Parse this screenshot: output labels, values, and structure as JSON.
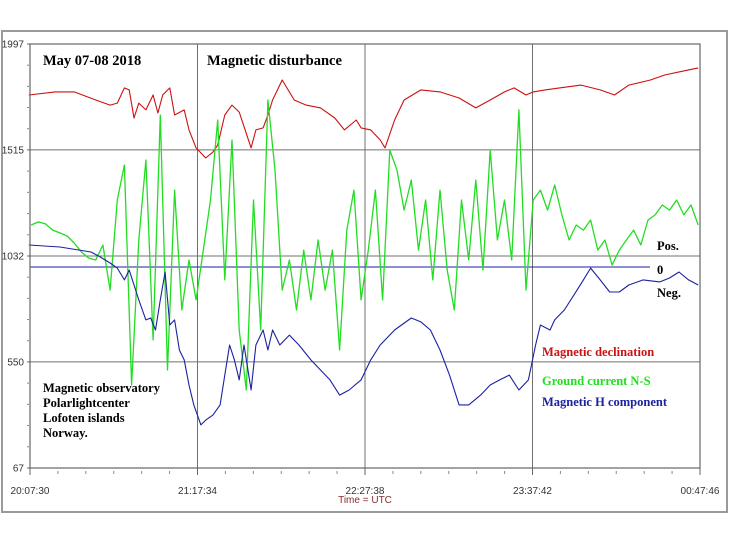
{
  "chart_data": {
    "type": "line",
    "title_left": "May 07-08 2018",
    "title_center": "Magnetic disturbance",
    "xlabel": "Time = UTC",
    "x_ticks": [
      "20:07:30",
      "21:17:34",
      "22:27:38",
      "23:37:42",
      "00:47:46"
    ],
    "y_ticks": [
      "1997",
      "1515",
      "1032",
      "550",
      "67"
    ],
    "ylim": [
      67,
      1997
    ],
    "xlim": [
      "20:07:30",
      "00:47:46"
    ],
    "grid": true,
    "zero_line": {
      "value": 982,
      "label": "0",
      "pos_label": "Pos.",
      "neg_label": "Neg."
    },
    "observatory_text": [
      "Magnetic observatory",
      "Polarlightcenter",
      "Lofoten islands",
      "Norway."
    ],
    "legend_position": "right",
    "series": [
      {
        "name": "Magnetic declination",
        "color": "#cc1111",
        "points": [
          [
            "20:07",
            1765
          ],
          [
            "20:18",
            1779
          ],
          [
            "20:26",
            1779
          ],
          [
            "20:35",
            1742
          ],
          [
            "20:41",
            1719
          ],
          [
            "20:44",
            1728
          ],
          [
            "20:47",
            1797
          ],
          [
            "20:49",
            1788
          ],
          [
            "20:51",
            1660
          ],
          [
            "20:53",
            1728
          ],
          [
            "20:56",
            1697
          ],
          [
            "20:59",
            1765
          ],
          [
            "21:01",
            1683
          ],
          [
            "21:03",
            1765
          ],
          [
            "21:06",
            1797
          ],
          [
            "21:08",
            1674
          ],
          [
            "21:12",
            1697
          ],
          [
            "21:14",
            1606
          ],
          [
            "21:17",
            1524
          ],
          [
            "21:21",
            1478
          ],
          [
            "21:24",
            1505
          ],
          [
            "21:26",
            1537
          ],
          [
            "21:29",
            1674
          ],
          [
            "21:32",
            1719
          ],
          [
            "21:35",
            1687
          ],
          [
            "21:40",
            1524
          ],
          [
            "21:42",
            1606
          ],
          [
            "21:45",
            1615
          ],
          [
            "21:47",
            1674
          ],
          [
            "21:49",
            1742
          ],
          [
            "21:53",
            1833
          ],
          [
            "21:58",
            1742
          ],
          [
            "22:03",
            1719
          ],
          [
            "22:09",
            1706
          ],
          [
            "22:15",
            1660
          ],
          [
            "22:19",
            1606
          ],
          [
            "22:24",
            1651
          ],
          [
            "22:26",
            1615
          ],
          [
            "22:30",
            1606
          ],
          [
            "22:34",
            1560
          ],
          [
            "22:36",
            1524
          ],
          [
            "22:40",
            1651
          ],
          [
            "22:44",
            1742
          ],
          [
            "22:51",
            1788
          ],
          [
            "22:59",
            1779
          ],
          [
            "23:07",
            1751
          ],
          [
            "23:14",
            1706
          ],
          [
            "23:20",
            1742
          ],
          [
            "23:26",
            1779
          ],
          [
            "23:30",
            1797
          ],
          [
            "23:35",
            1765
          ],
          [
            "23:38",
            1779
          ],
          [
            "23:43",
            1788
          ],
          [
            "23:49",
            1797
          ],
          [
            "23:58",
            1810
          ],
          [
            "00:06",
            1788
          ],
          [
            "00:12",
            1765
          ],
          [
            "00:18",
            1810
          ],
          [
            "00:27",
            1833
          ],
          [
            "00:33",
            1856
          ],
          [
            "00:39",
            1870
          ],
          [
            "00:47",
            1888
          ]
        ]
      },
      {
        "name": "Ground current N-S",
        "color": "#22dd22",
        "points": [
          [
            "20:08",
            1173
          ],
          [
            "20:11",
            1187
          ],
          [
            "20:14",
            1178
          ],
          [
            "20:17",
            1150
          ],
          [
            "20:20",
            1137
          ],
          [
            "20:23",
            1123
          ],
          [
            "20:26",
            1091
          ],
          [
            "20:29",
            1050
          ],
          [
            "20:32",
            1023
          ],
          [
            "20:35",
            1014
          ],
          [
            "20:38",
            1082
          ],
          [
            "20:41",
            877
          ],
          [
            "20:44",
            1287
          ],
          [
            "20:47",
            1446
          ],
          [
            "20:50",
            445
          ],
          [
            "20:53",
            1105
          ],
          [
            "20:56",
            1469
          ],
          [
            "20:59",
            650
          ],
          [
            "21:02",
            1674
          ],
          [
            "21:05",
            513
          ],
          [
            "21:08",
            1332
          ],
          [
            "21:11",
            786
          ],
          [
            "21:14",
            1014
          ],
          [
            "21:17",
            832
          ],
          [
            "21:20",
            1059
          ],
          [
            "21:23",
            1287
          ],
          [
            "21:26",
            1651
          ],
          [
            "21:29",
            923
          ],
          [
            "21:32",
            1560
          ],
          [
            "21:35",
            695
          ],
          [
            "21:38",
            422
          ],
          [
            "21:41",
            1287
          ],
          [
            "21:44",
            695
          ],
          [
            "21:47",
            1742
          ],
          [
            "21:50",
            1423
          ],
          [
            "21:53",
            877
          ],
          [
            "21:56",
            1014
          ],
          [
            "21:59",
            786
          ],
          [
            "22:02",
            1059
          ],
          [
            "22:05",
            832
          ],
          [
            "22:08",
            1105
          ],
          [
            "22:11",
            877
          ],
          [
            "22:14",
            1059
          ],
          [
            "22:17",
            604
          ],
          [
            "22:20",
            1150
          ],
          [
            "22:23",
            1332
          ],
          [
            "22:26",
            832
          ],
          [
            "22:29",
            1059
          ],
          [
            "22:32",
            1332
          ],
          [
            "22:35",
            832
          ],
          [
            "22:38",
            1514
          ],
          [
            "22:41",
            1423
          ],
          [
            "22:44",
            1241
          ],
          [
            "22:47",
            1378
          ],
          [
            "22:50",
            1059
          ],
          [
            "22:53",
            1287
          ],
          [
            "22:56",
            923
          ],
          [
            "22:59",
            1332
          ],
          [
            "23:02",
            968
          ],
          [
            "23:05",
            786
          ],
          [
            "23:08",
            1287
          ],
          [
            "23:11",
            1014
          ],
          [
            "23:14",
            1378
          ],
          [
            "23:17",
            968
          ],
          [
            "23:20",
            1514
          ],
          [
            "23:23",
            1105
          ],
          [
            "23:26",
            1287
          ],
          [
            "23:29",
            1014
          ],
          [
            "23:32",
            1697
          ],
          [
            "23:35",
            877
          ],
          [
            "23:38",
            1287
          ],
          [
            "23:41",
            1332
          ],
          [
            "23:44",
            1241
          ],
          [
            "23:47",
            1355
          ],
          [
            "23:50",
            1219
          ],
          [
            "23:53",
            1105
          ],
          [
            "23:56",
            1173
          ],
          [
            "23:59",
            1150
          ],
          [
            "00:02",
            1196
          ],
          [
            "00:05",
            1059
          ],
          [
            "00:08",
            1105
          ],
          [
            "00:11",
            991
          ],
          [
            "00:14",
            1059
          ],
          [
            "00:17",
            1105
          ],
          [
            "00:20",
            1150
          ],
          [
            "00:23",
            1082
          ],
          [
            "00:26",
            1196
          ],
          [
            "00:29",
            1219
          ],
          [
            "00:32",
            1264
          ],
          [
            "00:35",
            1241
          ],
          [
            "00:38",
            1287
          ],
          [
            "00:41",
            1219
          ],
          [
            "00:44",
            1264
          ],
          [
            "00:47",
            1173
          ]
        ]
      },
      {
        "name": "Magnetic H component",
        "color": "#1a22a0",
        "points": [
          [
            "20:07",
            1082
          ],
          [
            "20:20",
            1073
          ],
          [
            "20:33",
            1050
          ],
          [
            "20:37",
            1027
          ],
          [
            "20:41",
            1000
          ],
          [
            "20:44",
            977
          ],
          [
            "20:47",
            923
          ],
          [
            "20:49",
            968
          ],
          [
            "20:51",
            900
          ],
          [
            "20:53",
            832
          ],
          [
            "20:56",
            741
          ],
          [
            "20:58",
            750
          ],
          [
            "21:00",
            695
          ],
          [
            "21:02",
            832
          ],
          [
            "21:04",
            959
          ],
          [
            "21:06",
            718
          ],
          [
            "21:08",
            741
          ],
          [
            "21:10",
            604
          ],
          [
            "21:12",
            559
          ],
          [
            "21:14",
            445
          ],
          [
            "21:16",
            354
          ],
          [
            "21:19",
            263
          ],
          [
            "21:21",
            285
          ],
          [
            "21:24",
            308
          ],
          [
            "21:27",
            354
          ],
          [
            "21:29",
            490
          ],
          [
            "21:31",
            627
          ],
          [
            "21:33",
            559
          ],
          [
            "21:35",
            468
          ],
          [
            "21:37",
            627
          ],
          [
            "21:40",
            422
          ],
          [
            "21:42",
            627
          ],
          [
            "21:45",
            695
          ],
          [
            "21:47",
            604
          ],
          [
            "21:49",
            695
          ],
          [
            "21:52",
            627
          ],
          [
            "21:56",
            672
          ],
          [
            "22:00",
            627
          ],
          [
            "22:05",
            559
          ],
          [
            "22:09",
            513
          ],
          [
            "22:13",
            468
          ],
          [
            "22:17",
            399
          ],
          [
            "22:21",
            422
          ],
          [
            "22:26",
            468
          ],
          [
            "22:30",
            559
          ],
          [
            "22:34",
            627
          ],
          [
            "22:40",
            695
          ],
          [
            "22:47",
            750
          ],
          [
            "22:51",
            732
          ],
          [
            "22:55",
            695
          ],
          [
            "22:59",
            604
          ],
          [
            "23:03",
            490
          ],
          [
            "23:07",
            354
          ],
          [
            "23:11",
            354
          ],
          [
            "23:16",
            399
          ],
          [
            "23:20",
            445
          ],
          [
            "23:24",
            468
          ],
          [
            "23:28",
            490
          ],
          [
            "23:32",
            422
          ],
          [
            "23:36",
            468
          ],
          [
            "23:39",
            627
          ],
          [
            "23:41",
            718
          ],
          [
            "23:45",
            695
          ],
          [
            "23:47",
            741
          ],
          [
            "23:51",
            786
          ],
          [
            "23:55",
            854
          ],
          [
            "23:59",
            923
          ],
          [
            "00:02",
            977
          ],
          [
            "00:06",
            923
          ],
          [
            "00:10",
            868
          ],
          [
            "00:14",
            868
          ],
          [
            "00:18",
            900
          ],
          [
            "00:24",
            923
          ],
          [
            "00:31",
            914
          ],
          [
            "00:35",
            932
          ],
          [
            "00:39",
            959
          ],
          [
            "00:43",
            923
          ],
          [
            "00:47",
            900
          ]
        ]
      }
    ]
  }
}
